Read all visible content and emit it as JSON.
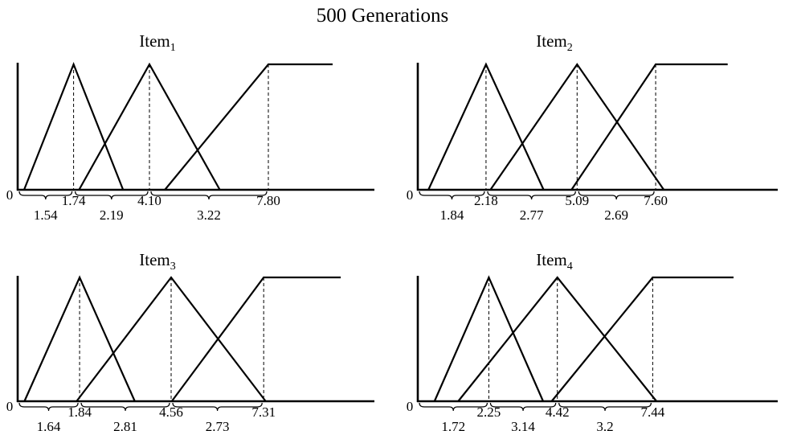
{
  "title": "500 Generations",
  "chart_data": [
    {
      "type": "line",
      "title": "Item",
      "title_subscript": "1",
      "origin_label": "0",
      "peaks": [
        1.74,
        4.1,
        7.8
      ],
      "peak_labels": [
        "1.74",
        "4.10",
        "7.80"
      ],
      "widths": [
        1.54,
        2.19,
        3.22
      ],
      "width_labels": [
        "1.54",
        "2.19",
        "3.22"
      ],
      "membership_functions": [
        {
          "shape": "triangle",
          "x": [
            0.2,
            1.74,
            3.28
          ],
          "y": [
            0,
            1,
            0
          ]
        },
        {
          "shape": "triangle",
          "x": [
            1.91,
            4.1,
            6.29
          ],
          "y": [
            0,
            1,
            0
          ]
        },
        {
          "shape": "right-shoulder",
          "x": [
            4.58,
            7.8,
            9.8
          ],
          "y": [
            0,
            1,
            1
          ]
        }
      ],
      "xlim": [
        0,
        11.1
      ],
      "ylim": [
        0,
        1
      ]
    },
    {
      "type": "line",
      "title": "Item",
      "title_subscript": "2",
      "origin_label": "0",
      "peaks": [
        2.18,
        5.09,
        7.6
      ],
      "peak_labels": [
        "2.18",
        "5.09",
        "7.60"
      ],
      "widths": [
        1.84,
        2.77,
        2.69
      ],
      "width_labels": [
        "1.84",
        "2.77",
        "2.69"
      ],
      "membership_functions": [
        {
          "shape": "triangle",
          "x": [
            0.34,
            2.18,
            4.02
          ],
          "y": [
            0,
            1,
            0
          ]
        },
        {
          "shape": "triangle",
          "x": [
            2.32,
            5.09,
            7.86
          ],
          "y": [
            0,
            1,
            0
          ]
        },
        {
          "shape": "right-shoulder",
          "x": [
            4.91,
            7.6,
            9.9
          ],
          "y": [
            0,
            1,
            1
          ]
        }
      ],
      "xlim": [
        0,
        11.5
      ],
      "ylim": [
        0,
        1
      ]
    },
    {
      "type": "line",
      "title": "Item",
      "title_subscript": "3",
      "origin_label": "0",
      "peaks": [
        1.84,
        4.56,
        7.31
      ],
      "peak_labels": [
        "1.84",
        "4.56",
        "7.31"
      ],
      "widths": [
        1.64,
        2.81,
        2.73
      ],
      "width_labels": [
        "1.64",
        "2.81",
        "2.73"
      ],
      "membership_functions": [
        {
          "shape": "triangle",
          "x": [
            0.2,
            1.84,
            3.48
          ],
          "y": [
            0,
            1,
            0
          ]
        },
        {
          "shape": "triangle",
          "x": [
            1.75,
            4.56,
            7.37
          ],
          "y": [
            0,
            1,
            0
          ]
        },
        {
          "shape": "right-shoulder",
          "x": [
            4.58,
            7.31,
            9.6
          ],
          "y": [
            0,
            1,
            1
          ]
        }
      ],
      "xlim": [
        0,
        10.6
      ],
      "ylim": [
        0,
        1
      ]
    },
    {
      "type": "line",
      "title": "Item",
      "title_subscript": "4",
      "origin_label": "0",
      "peaks": [
        2.25,
        4.42,
        7.44
      ],
      "peak_labels": [
        "2.25",
        "4.42",
        "7.44"
      ],
      "widths": [
        1.72,
        3.14,
        3.2
      ],
      "width_labels": [
        "1.72",
        "3.14",
        "3.2"
      ],
      "membership_functions": [
        {
          "shape": "triangle",
          "x": [
            0.53,
            2.25,
            3.97
          ],
          "y": [
            0,
            1,
            0
          ]
        },
        {
          "shape": "triangle",
          "x": [
            1.28,
            4.42,
            7.56
          ],
          "y": [
            0,
            1,
            0
          ]
        },
        {
          "shape": "right-shoulder",
          "x": [
            4.24,
            7.44,
            10.0
          ],
          "y": [
            0,
            1,
            1
          ]
        }
      ],
      "xlim": [
        0,
        11.4
      ],
      "ylim": [
        0,
        1
      ]
    }
  ]
}
